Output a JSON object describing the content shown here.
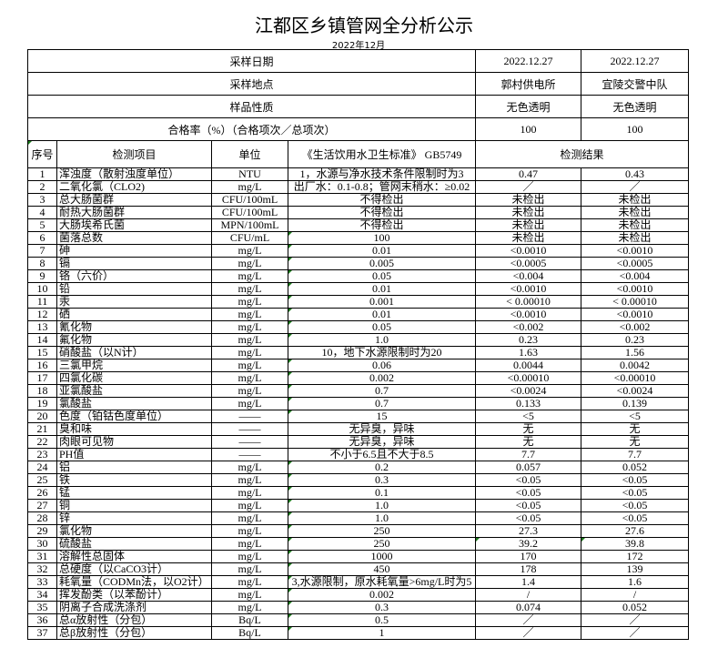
{
  "title": "江都区乡镇管网全分析公示",
  "subtitle": "2022年12月",
  "meta_rows": [
    {
      "label": "采样日期",
      "values": [
        "2022.12.27",
        "2022.12.27"
      ]
    },
    {
      "label": "采样地点",
      "values": [
        "郭村供电所",
        "宜陵交警中队"
      ]
    },
    {
      "label": "样品性质",
      "values": [
        "无色透明",
        "无色透明"
      ]
    },
    {
      "label": "合格率（%）（合格项次／总项次）",
      "values": [
        "100",
        "100"
      ]
    }
  ],
  "columns": [
    "序号",
    "检测项目",
    "单位",
    "《生活饮用水卫生标准》 GB5749",
    "检测结果"
  ],
  "rows": [
    {
      "no": "1",
      "item": "浑浊度（散射浊度单位）",
      "unit": "NTU",
      "std": "1，水源与净水技术条件限制时为3",
      "r1": "0.47",
      "r2": "0.43"
    },
    {
      "no": "2",
      "item": "二氧化氯（CLO2)",
      "unit": "mg/L",
      "std": "出厂水：0.1-0.8；管网末稍水：≥0.02",
      "r1": "／",
      "r2": "／"
    },
    {
      "no": "3",
      "item": "总大肠菌群",
      "unit": "CFU/100mL",
      "std": "不得检出",
      "r1": "未检出",
      "r2": "未检出"
    },
    {
      "no": "4",
      "item": "耐热大肠菌群",
      "unit": "CFU/100mL",
      "std": "不得检出",
      "r1": "未检出",
      "r2": "未检出"
    },
    {
      "no": "5",
      "item": "大肠埃希氏菌",
      "unit": "MPN/100mL",
      "std": "不得检出",
      "r1": "未检出",
      "r2": "未检出"
    },
    {
      "no": "6",
      "item": "菌落总数",
      "unit": "CFU/mL",
      "std": "100",
      "r1": "未检出",
      "r2": "未检出"
    },
    {
      "no": "7",
      "item": "砷",
      "unit": "mg/L",
      "std": "0.01",
      "r1": "<0.0010",
      "r2": "<0.0010"
    },
    {
      "no": "8",
      "item": "镉",
      "unit": "mg/L",
      "std": "0.005",
      "r1": "<0.0005",
      "r2": "<0.0005"
    },
    {
      "no": "9",
      "item": "铬（六价）",
      "unit": "mg/L",
      "std": "0.05",
      "r1": "<0.004",
      "r2": "<0.004"
    },
    {
      "no": "10",
      "item": "铅",
      "unit": "mg/L",
      "std": "0.01",
      "r1": "<0.0010",
      "r2": "<0.0010"
    },
    {
      "no": "11",
      "item": "汞",
      "unit": "mg/L",
      "std": "0.001",
      "r1": "< 0.00010",
      "r2": "< 0.00010"
    },
    {
      "no": "12",
      "item": "硒",
      "unit": "mg/L",
      "std": "0.01",
      "r1": "<0.0010",
      "r2": "<0.0010"
    },
    {
      "no": "13",
      "item": "氰化物",
      "unit": "mg/L",
      "std": "0.05",
      "r1": "<0.002",
      "r2": "<0.002"
    },
    {
      "no": "14",
      "item": "氟化物",
      "unit": "mg/L",
      "std": "1.0",
      "r1": "0.23",
      "r2": "0.23"
    },
    {
      "no": "15",
      "item": "硝酸盐（以N计）",
      "unit": "mg/L",
      "std": "10，地下水源限制时为20",
      "r1": "1.63",
      "r2": "1.56"
    },
    {
      "no": "16",
      "item": "三氯甲烷",
      "unit": "mg/L",
      "std": "0.06",
      "r1": "0.0044",
      "r2": "0.0042"
    },
    {
      "no": "17",
      "item": "四氯化碳",
      "unit": "mg/L",
      "std": "0.002",
      "r1": "<0.00010",
      "r2": "<0.00010"
    },
    {
      "no": "18",
      "item": "亚氯酸盐",
      "unit": "mg/L",
      "std": "0.7",
      "r1": "<0.0024",
      "r2": "<0.0024"
    },
    {
      "no": "19",
      "item": "氯酸盐",
      "unit": "mg/L",
      "std": "0.7",
      "r1": "0.133",
      "r2": "0.139"
    },
    {
      "no": "20",
      "item": "色度（铂钴色度单位）",
      "unit": "——",
      "std": "15",
      "r1": "<5",
      "r2": "<5"
    },
    {
      "no": "21",
      "item": "臭和味",
      "unit": "——",
      "std": "无异臭，异味",
      "r1": "无",
      "r2": "无"
    },
    {
      "no": "22",
      "item": "肉眼可见物",
      "unit": "——",
      "std": "无异臭，异味",
      "r1": "无",
      "r2": "无"
    },
    {
      "no": "23",
      "item": "PH值",
      "unit": "——",
      "std": "不小于6.5且不大于8.5",
      "r1": "7.7",
      "r2": "7.7"
    },
    {
      "no": "24",
      "item": "铝",
      "unit": "mg/L",
      "std": "0.2",
      "r1": "0.057",
      "r2": "0.052"
    },
    {
      "no": "25",
      "item": "铁",
      "unit": "mg/L",
      "std": "0.3",
      "r1": "<0.05",
      "r2": "<0.05"
    },
    {
      "no": "26",
      "item": "锰",
      "unit": "mg/L",
      "std": "0.1",
      "r1": "<0.05",
      "r2": "<0.05"
    },
    {
      "no": "27",
      "item": "铜",
      "unit": "mg/L",
      "std": "1.0",
      "r1": "<0.05",
      "r2": "<0.05"
    },
    {
      "no": "28",
      "item": "锌",
      "unit": "mg/L",
      "std": "1.0",
      "r1": "<0.05",
      "r2": "<0.05"
    },
    {
      "no": "29",
      "item": "氯化物",
      "unit": "mg/L",
      "std": "250",
      "r1": "27.3",
      "r2": "27.6"
    },
    {
      "no": "30",
      "item": "硫酸盐",
      "unit": "mg/L",
      "std": "250",
      "r1": "39.2",
      "r2": "39.8"
    },
    {
      "no": "31",
      "item": "溶解性总固体",
      "unit": "mg/L",
      "std": "1000",
      "r1": "170",
      "r2": "172"
    },
    {
      "no": "32",
      "item": "总硬度（以CaCO3计）",
      "unit": "mg/L",
      "std": "450",
      "r1": "178",
      "r2": "139"
    },
    {
      "no": "33",
      "item": "耗氧量（CODMn法，以O2计）",
      "unit": "mg/L",
      "std": "3,水源限制，原水耗氧量>6mg/L时为5",
      "r1": "1.4",
      "r2": "1.6"
    },
    {
      "no": "34",
      "item": "挥发酚类（以苯酚计）",
      "unit": "mg/L",
      "std": "0.002",
      "r1": "/",
      "r2": "/"
    },
    {
      "no": "35",
      "item": "阴离子合成洗涤剂",
      "unit": "mg/L",
      "std": "0.3",
      "r1": "0.074",
      "r2": "0.052"
    },
    {
      "no": "36",
      "item": "总α放射性（分包）",
      "unit": "Bq/L",
      "std": "0.5",
      "r1": "／",
      "r2": "／"
    },
    {
      "no": "37",
      "item": "总β放射性（分包）",
      "unit": "Bq/L",
      "std": "1",
      "r1": "／",
      "r2": "／"
    }
  ]
}
